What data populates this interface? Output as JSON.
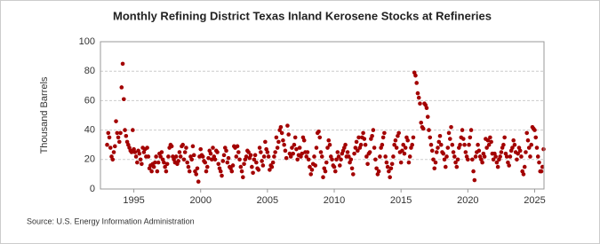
{
  "chart_data": {
    "type": "scatter",
    "title": "Monthly Refining District Texas Inland Kerosene Stocks at Refineries",
    "y_label": "Thousand Barrels",
    "source": "Source: U.S. Energy Information Administration",
    "color": "#a30000",
    "grid": true,
    "xlim": [
      1992.5,
      2025.7
    ],
    "xticks": [
      1995,
      2000,
      2005,
      2010,
      2015,
      2020,
      2025
    ],
    "ylim": [
      0,
      100
    ],
    "yticks": [
      0,
      20,
      40,
      60,
      80,
      100
    ],
    "series": [
      {
        "name": "Texas Inland Kerosene Stocks",
        "x": [
          "1993-01",
          "1993-02",
          "1993-03",
          "1993-04",
          "1993-05",
          "1993-06",
          "1993-07",
          "1993-08",
          "1993-09",
          "1993-10",
          "1993-11",
          "1993-12",
          "1994-01",
          "1994-02",
          "1994-03",
          "1994-04",
          "1994-05",
          "1994-06",
          "1994-07",
          "1994-08",
          "1994-09",
          "1994-10",
          "1994-11",
          "1994-12",
          "1995-01",
          "1995-02",
          "1995-03",
          "1995-04",
          "1995-05",
          "1995-06",
          "1995-07",
          "1995-08",
          "1995-09",
          "1995-10",
          "1995-11",
          "1995-12",
          "1996-01",
          "1996-02",
          "1996-03",
          "1996-04",
          "1996-05",
          "1996-06",
          "1996-07",
          "1996-08",
          "1996-09",
          "1996-10",
          "1996-11",
          "1996-12",
          "1997-01",
          "1997-02",
          "1997-03",
          "1997-04",
          "1997-05",
          "1997-06",
          "1997-07",
          "1997-08",
          "1997-09",
          "1997-10",
          "1997-11",
          "1997-12",
          "1998-01",
          "1998-02",
          "1998-03",
          "1998-04",
          "1998-05",
          "1998-06",
          "1998-07",
          "1998-08",
          "1998-09",
          "1998-10",
          "1998-11",
          "1998-12",
          "1999-01",
          "1999-02",
          "1999-03",
          "1999-04",
          "1999-05",
          "1999-06",
          "1999-07",
          "1999-08",
          "1999-09",
          "1999-10",
          "1999-11",
          "1999-12",
          "2000-01",
          "2000-02",
          "2000-03",
          "2000-04",
          "2000-05",
          "2000-06",
          "2000-07",
          "2000-08",
          "2000-09",
          "2000-10",
          "2000-11",
          "2000-12",
          "2001-01",
          "2001-02",
          "2001-03",
          "2001-04",
          "2001-05",
          "2001-06",
          "2001-07",
          "2001-08",
          "2001-09",
          "2001-10",
          "2001-11",
          "2001-12",
          "2002-01",
          "2002-02",
          "2002-03",
          "2002-04",
          "2002-05",
          "2002-06",
          "2002-07",
          "2002-08",
          "2002-09",
          "2002-10",
          "2002-11",
          "2002-12",
          "2003-01",
          "2003-02",
          "2003-03",
          "2003-04",
          "2003-05",
          "2003-06",
          "2003-07",
          "2003-08",
          "2003-09",
          "2003-10",
          "2003-11",
          "2003-12",
          "2004-01",
          "2004-02",
          "2004-03",
          "2004-04",
          "2004-05",
          "2004-06",
          "2004-07",
          "2004-08",
          "2004-09",
          "2004-10",
          "2004-11",
          "2004-12",
          "2005-01",
          "2005-02",
          "2005-03",
          "2005-04",
          "2005-05",
          "2005-06",
          "2005-07",
          "2005-08",
          "2005-09",
          "2005-10",
          "2005-11",
          "2005-12",
          "2006-01",
          "2006-02",
          "2006-03",
          "2006-04",
          "2006-05",
          "2006-06",
          "2006-07",
          "2006-08",
          "2006-09",
          "2006-10",
          "2006-11",
          "2006-12",
          "2007-01",
          "2007-02",
          "2007-03",
          "2007-04",
          "2007-05",
          "2007-06",
          "2007-07",
          "2007-08",
          "2007-09",
          "2007-10",
          "2007-11",
          "2007-12",
          "2008-01",
          "2008-02",
          "2008-03",
          "2008-04",
          "2008-05",
          "2008-06",
          "2008-07",
          "2008-08",
          "2008-09",
          "2008-10",
          "2008-11",
          "2008-12",
          "2009-01",
          "2009-02",
          "2009-03",
          "2009-04",
          "2009-05",
          "2009-06",
          "2009-07",
          "2009-08",
          "2009-09",
          "2009-10",
          "2009-11",
          "2009-12",
          "2010-01",
          "2010-02",
          "2010-03",
          "2010-04",
          "2010-05",
          "2010-06",
          "2010-07",
          "2010-08",
          "2010-09",
          "2010-10",
          "2010-11",
          "2010-12",
          "2011-01",
          "2011-02",
          "2011-03",
          "2011-04",
          "2011-05",
          "2011-06",
          "2011-07",
          "2011-08",
          "2011-09",
          "2011-10",
          "2011-11",
          "2011-12",
          "2012-01",
          "2012-02",
          "2012-03",
          "2012-04",
          "2012-05",
          "2012-06",
          "2012-07",
          "2012-08",
          "2012-09",
          "2012-10",
          "2012-11",
          "2012-12",
          "2013-01",
          "2013-02",
          "2013-03",
          "2013-04",
          "2013-05",
          "2013-06",
          "2013-07",
          "2013-08",
          "2013-09",
          "2013-10",
          "2013-11",
          "2013-12",
          "2014-01",
          "2014-02",
          "2014-03",
          "2014-04",
          "2014-05",
          "2014-06",
          "2014-07",
          "2014-08",
          "2014-09",
          "2014-10",
          "2014-11",
          "2014-12",
          "2015-01",
          "2015-02",
          "2015-03",
          "2015-04",
          "2015-05",
          "2015-06",
          "2015-07",
          "2015-08",
          "2015-09",
          "2015-10",
          "2015-11",
          "2015-12",
          "2016-01",
          "2016-02",
          "2016-03",
          "2016-04",
          "2016-05",
          "2016-06",
          "2016-07",
          "2016-08",
          "2016-09",
          "2016-10",
          "2016-11",
          "2016-12",
          "2017-01",
          "2017-02",
          "2017-03",
          "2017-04",
          "2017-05",
          "2017-06",
          "2017-07",
          "2017-08",
          "2017-09",
          "2017-10",
          "2017-11",
          "2017-12",
          "2018-01",
          "2018-02",
          "2018-03",
          "2018-04",
          "2018-05",
          "2018-06",
          "2018-07",
          "2018-08",
          "2018-09",
          "2018-10",
          "2018-11",
          "2018-12",
          "2019-01",
          "2019-02",
          "2019-03",
          "2019-04",
          "2019-05",
          "2019-06",
          "2019-07",
          "2019-08",
          "2019-09",
          "2019-10",
          "2019-11",
          "2019-12",
          "2020-01",
          "2020-02",
          "2020-03",
          "2020-04",
          "2020-05",
          "2020-06",
          "2020-07",
          "2020-08",
          "2020-09",
          "2020-10",
          "2020-11",
          "2020-12",
          "2021-01",
          "2021-02",
          "2021-03",
          "2021-04",
          "2021-05",
          "2021-06",
          "2021-07",
          "2021-08",
          "2021-09",
          "2021-10",
          "2021-11",
          "2021-12",
          "2022-01",
          "2022-02",
          "2022-03",
          "2022-04",
          "2022-05",
          "2022-06",
          "2022-07",
          "2022-08",
          "2022-09",
          "2022-10",
          "2022-11",
          "2022-12",
          "2023-01",
          "2023-02",
          "2023-03",
          "2023-04",
          "2023-05",
          "2023-06",
          "2023-07",
          "2023-08",
          "2023-09",
          "2023-10",
          "2023-11",
          "2023-12",
          "2024-01",
          "2024-02",
          "2024-03",
          "2024-04",
          "2024-05",
          "2024-06",
          "2024-07",
          "2024-08",
          "2024-09",
          "2024-10",
          "2024-11",
          "2024-12",
          "2025-01",
          "2025-02",
          "2025-03",
          "2025-04",
          "2025-05",
          "2025-06",
          "2025-07",
          "2025-08",
          "2025-09"
        ],
        "values": [
          30,
          38,
          35,
          28,
          22,
          20,
          25,
          29,
          46,
          38,
          35,
          32,
          38,
          69,
          85,
          61,
          40,
          36,
          32,
          30,
          28,
          26,
          25,
          40,
          27,
          25,
          22,
          18,
          26,
          24,
          20,
          17,
          28,
          25,
          27,
          22,
          28,
          22,
          14,
          16,
          12,
          17,
          15,
          18,
          22,
          12,
          18,
          24,
          22,
          25,
          20,
          18,
          15,
          12,
          17,
          22,
          28,
          30,
          29,
          22,
          20,
          18,
          22,
          17,
          19,
          25,
          22,
          29,
          30,
          20,
          25,
          28,
          18,
          15,
          12,
          22,
          20,
          29,
          23,
          12,
          10,
          14,
          5,
          22,
          27,
          23,
          22,
          19,
          18,
          12,
          15,
          21,
          26,
          24,
          20,
          28,
          22,
          20,
          26,
          25,
          17,
          14,
          12,
          9,
          19,
          23,
          28,
          26,
          18,
          21,
          15,
          14,
          12,
          16,
          29,
          28,
          22,
          29,
          25,
          20,
          15,
          12,
          8,
          17,
          20,
          22,
          26,
          25,
          21,
          23,
          15,
          11,
          20,
          23,
          18,
          14,
          13,
          28,
          25,
          19,
          16,
          22,
          32,
          27,
          25,
          22,
          13,
          16,
          15,
          18,
          22,
          25,
          35,
          28,
          32,
          40,
          42,
          38,
          33,
          30,
          26,
          21,
          43,
          37,
          24,
          22,
          28,
          24,
          30,
          35,
          27,
          20,
          23,
          28,
          22,
          24,
          35,
          33,
          25,
          22,
          25,
          20,
          15,
          10,
          13,
          17,
          22,
          16,
          28,
          38,
          39,
          35,
          25,
          22,
          8,
          14,
          12,
          18,
          28,
          33,
          30,
          22,
          20,
          16,
          15,
          12,
          20,
          25,
          22,
          16,
          20,
          24,
          26,
          28,
          30,
          22,
          25,
          22,
          18,
          20,
          14,
          10,
          24,
          28,
          32,
          26,
          35,
          28,
          30,
          35,
          38,
          34,
          30,
          22,
          17,
          24,
          25,
          34,
          36,
          40,
          28,
          20,
          14,
          10,
          12,
          22,
          28,
          30,
          35,
          38,
          22,
          18,
          15,
          12,
          8,
          14,
          17,
          22,
          30,
          33,
          28,
          36,
          38,
          25,
          18,
          26,
          30,
          24,
          28,
          35,
          33,
          18,
          22,
          28,
          30,
          35,
          79,
          77,
          72,
          65,
          62,
          58,
          45,
          42,
          41,
          58,
          57,
          55,
          49,
          40,
          35,
          30,
          26,
          20,
          14,
          18,
          25,
          28,
          32,
          36,
          30,
          25,
          24,
          20,
          15,
          22,
          28,
          38,
          34,
          42,
          30,
          25,
          22,
          18,
          15,
          20,
          28,
          30,
          35,
          40,
          34,
          30,
          25,
          22,
          20,
          30,
          35,
          40,
          20,
          12,
          6,
          22,
          25,
          30,
          26,
          22,
          20,
          18,
          24,
          22,
          34,
          28,
          33,
          30,
          35,
          32,
          24,
          20,
          24,
          22,
          18,
          15,
          20,
          22,
          25,
          28,
          30,
          35,
          24,
          22,
          18,
          16,
          22,
          26,
          28,
          33,
          30,
          25,
          20,
          24,
          28,
          26,
          22,
          12,
          10,
          15,
          25,
          38,
          33,
          28,
          22,
          30,
          42,
          41,
          40,
          35,
          28,
          22,
          18,
          12,
          12,
          15,
          27
        ]
      }
    ]
  }
}
